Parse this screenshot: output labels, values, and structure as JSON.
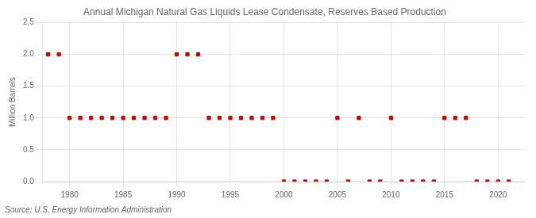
{
  "chart_data": {
    "type": "scatter",
    "title": "Annual Michigan Natural Gas Liquids Lease Condensate, Reserves Based Production",
    "ylabel": "Million Barrels",
    "source": "Source: U.S. Energy Information Administration",
    "color": "#cc0000",
    "marker": "square",
    "grid": true,
    "xlim": [
      1977.5,
      2022.5
    ],
    "ylim": [
      0.0,
      2.5
    ],
    "xticks": [
      1980,
      1985,
      1990,
      1995,
      2000,
      2005,
      2010,
      2015,
      2020
    ],
    "yticks": [
      {
        "value": 0,
        "label": "0.0"
      },
      0.5,
      {
        "value": 1,
        "label": "1.0"
      },
      1.5,
      {
        "value": 2,
        "label": "2.0"
      },
      2.5
    ],
    "x": [
      1978,
      1979,
      1980,
      1981,
      1982,
      1983,
      1984,
      1985,
      1986,
      1987,
      1988,
      1989,
      1990,
      1991,
      1992,
      1993,
      1994,
      1995,
      1996,
      1997,
      1998,
      1999,
      2000,
      2001,
      2002,
      2003,
      2004,
      2005,
      2006,
      2007,
      2008,
      2009,
      2010,
      2011,
      2012,
      2013,
      2014,
      2015,
      2016,
      2017,
      2018,
      2019,
      2020,
      2021
    ],
    "values": [
      2.0,
      2.0,
      1.0,
      1.0,
      1.0,
      1.0,
      1.0,
      1.0,
      1.0,
      1.0,
      1.0,
      1.0,
      2.0,
      2.0,
      2.0,
      1.0,
      1.0,
      1.0,
      1.0,
      1.0,
      1.0,
      1.0,
      0.0,
      0.0,
      0.0,
      0.0,
      0.0,
      1.0,
      0.0,
      1.0,
      0.0,
      0.0,
      1.0,
      0.0,
      0.0,
      0.0,
      0.0,
      1.0,
      1.0,
      1.0,
      0.0,
      0.0,
      0.0,
      0.0
    ]
  }
}
